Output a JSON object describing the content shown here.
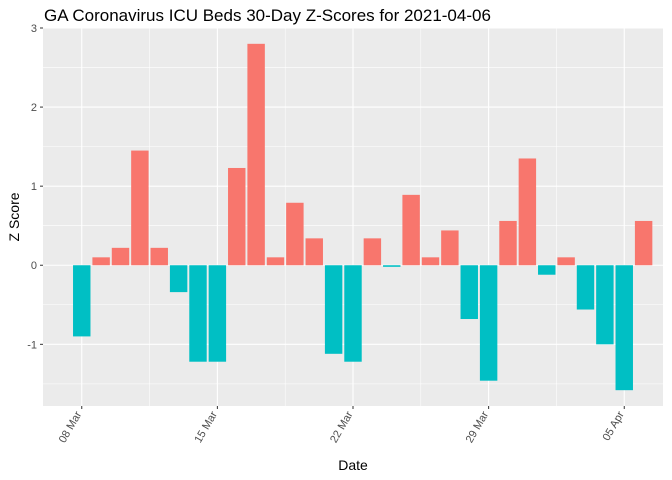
{
  "chart_data": {
    "type": "bar",
    "title": "GA Coronavirus ICU Beds 30-Day Z-Scores for 2021-04-06",
    "xlabel": "Date",
    "ylabel": "Z Score",
    "x": [
      "2021-03-08",
      "2021-03-09",
      "2021-03-10",
      "2021-03-11",
      "2021-03-12",
      "2021-03-13",
      "2021-03-14",
      "2021-03-15",
      "2021-03-16",
      "2021-03-17",
      "2021-03-18",
      "2021-03-19",
      "2021-03-20",
      "2021-03-21",
      "2021-03-22",
      "2021-03-23",
      "2021-03-24",
      "2021-03-25",
      "2021-03-26",
      "2021-03-27",
      "2021-03-28",
      "2021-03-29",
      "2021-03-30",
      "2021-03-31",
      "2021-04-01",
      "2021-04-02",
      "2021-04-03",
      "2021-04-04",
      "2021-04-05",
      "2021-04-06"
    ],
    "values": [
      -0.9,
      0.1,
      0.22,
      1.45,
      0.22,
      -0.34,
      -1.22,
      -1.22,
      1.23,
      2.8,
      0.1,
      0.79,
      0.34,
      -1.12,
      -1.22,
      0.34,
      -0.02,
      0.89,
      0.1,
      0.44,
      -0.68,
      -1.46,
      0.56,
      1.35,
      -0.12,
      0.1,
      -0.56,
      -1.0,
      -1.58,
      0.56
    ],
    "xticks": [
      {
        "date": "2021-03-08",
        "label": "08 Mar"
      },
      {
        "date": "2021-03-15",
        "label": "15 Mar"
      },
      {
        "date": "2021-03-22",
        "label": "22 Mar"
      },
      {
        "date": "2021-03-29",
        "label": "29 Mar"
      },
      {
        "date": "2021-04-05",
        "label": "05 Apr"
      }
    ],
    "yticks": [
      -1,
      0,
      1,
      2,
      3
    ],
    "ylim": [
      -1.78,
      3.0
    ],
    "xlim": [
      "2021-03-06",
      "2021-04-07"
    ],
    "grid": true,
    "legend": "none",
    "colors": {
      "positive": "#F8766D",
      "negative": "#00BFC4",
      "panel": "#EBEBEB",
      "grid": "#FFFFFF"
    }
  }
}
